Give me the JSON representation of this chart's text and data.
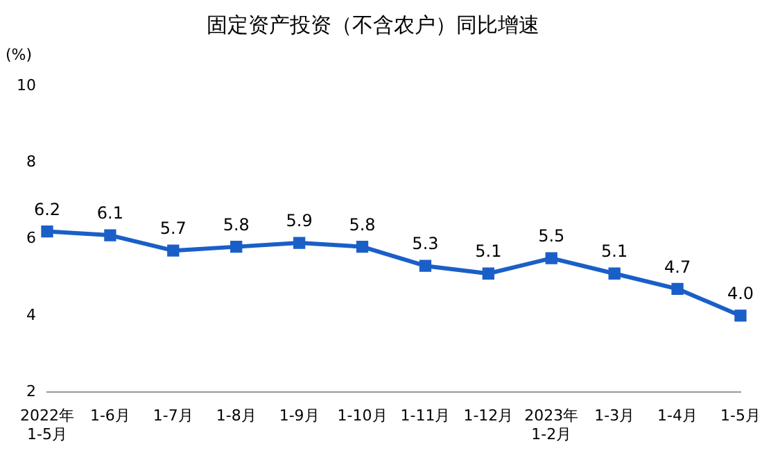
{
  "chart_data": {
    "type": "line",
    "title": "固定资产投资（不含农户）同比增速",
    "ylabel": "(%)",
    "categories": [
      "2022年\n1-5月",
      "1-6月",
      "1-7月",
      "1-8月",
      "1-9月",
      "1-10月",
      "1-11月",
      "1-12月",
      "2023年\n1-2月",
      "1-3月",
      "1-4月",
      "1-5月"
    ],
    "series": [
      {
        "color": "#1a5fc8",
        "values": [
          6.2,
          6.1,
          5.7,
          5.8,
          5.9,
          5.8,
          5.3,
          5.1,
          5.5,
          5.1,
          4.7,
          4.0
        ],
        "value_labels": [
          "6.2",
          "6.1",
          "5.7",
          "5.8",
          "5.9",
          "5.8",
          "5.3",
          "5.1",
          "5.5",
          "5.1",
          "4.7",
          "4.0"
        ]
      }
    ],
    "ylim": [
      2,
      10
    ],
    "yticks": [
      2,
      4,
      6,
      8,
      10
    ],
    "grid": false,
    "legend": false,
    "marker": "square",
    "line_style": "solid"
  }
}
